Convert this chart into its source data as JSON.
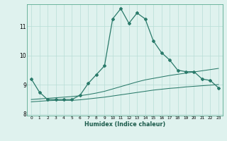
{
  "xlabel": "Humidex (Indice chaleur)",
  "x_values": [
    0,
    1,
    2,
    3,
    4,
    5,
    6,
    7,
    8,
    9,
    10,
    11,
    12,
    13,
    14,
    15,
    16,
    17,
    18,
    19,
    20,
    21,
    22,
    23
  ],
  "line1_y": [
    9.2,
    8.75,
    8.5,
    8.5,
    8.5,
    8.5,
    8.65,
    9.05,
    9.35,
    9.65,
    11.25,
    11.6,
    11.1,
    11.45,
    11.25,
    10.5,
    10.1,
    9.85,
    9.5,
    9.45,
    9.45,
    9.2,
    9.15,
    8.9
  ],
  "line2_y": [
    8.5,
    8.52,
    8.54,
    8.56,
    8.58,
    8.6,
    8.63,
    8.67,
    8.72,
    8.78,
    8.86,
    8.94,
    9.02,
    9.1,
    9.17,
    9.22,
    9.27,
    9.32,
    9.36,
    9.4,
    9.44,
    9.48,
    9.52,
    9.56
  ],
  "line3_y": [
    8.42,
    8.44,
    8.46,
    8.47,
    8.47,
    8.47,
    8.49,
    8.52,
    8.55,
    8.58,
    8.62,
    8.66,
    8.7,
    8.74,
    8.78,
    8.82,
    8.85,
    8.88,
    8.9,
    8.93,
    8.95,
    8.97,
    8.99,
    9.01
  ],
  "line_color": "#2a7a6a",
  "bg_color": "#dff2ee",
  "grid_color": "#b8ddd6",
  "ylim": [
    7.95,
    11.75
  ],
  "yticks": [
    8,
    9,
    10,
    11
  ],
  "xlim": [
    -0.5,
    23.5
  ]
}
